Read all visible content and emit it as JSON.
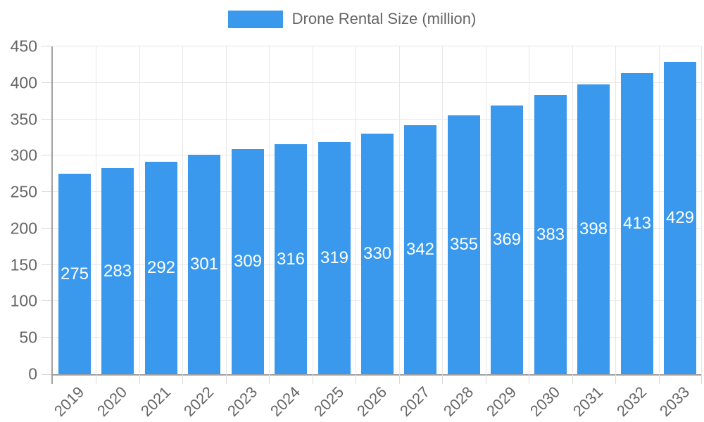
{
  "chart_data": {
    "type": "bar",
    "title": "Drone Rental Size (million)",
    "legend": {
      "label": "Drone Rental Size (million)",
      "position": "top"
    },
    "categories": [
      "2019",
      "2020",
      "2021",
      "2022",
      "2023",
      "2024",
      "2025",
      "2026",
      "2027",
      "2028",
      "2029",
      "2030",
      "2031",
      "2032",
      "2033"
    ],
    "series": [
      {
        "name": "Drone Rental Size (million)",
        "values": [
          275,
          283,
          292,
          301,
          309,
          316,
          319,
          330,
          342,
          355,
          369,
          383,
          398,
          413,
          429
        ]
      }
    ],
    "data_labels": [
      "275",
      "283",
      "292",
      "301",
      "309",
      "316",
      "319",
      "330",
      "342",
      "355",
      "369",
      "383",
      "398",
      "413",
      "429"
    ],
    "xlabel": "",
    "ylabel": "",
    "ylim": [
      0,
      450
    ],
    "ytick_step": 50,
    "y_ticks": [
      "0",
      "50",
      "100",
      "150",
      "200",
      "250",
      "300",
      "350",
      "400",
      "450"
    ],
    "grid": "both",
    "colors": {
      "bar": "#3a99ec",
      "axis_text": "#666666",
      "grid_line": "#e7e7e7",
      "axis_line": "#a0a0a0",
      "tick_mark": "#d9d9d9",
      "value_label": "#ffffff",
      "background": "#ffffff"
    }
  }
}
